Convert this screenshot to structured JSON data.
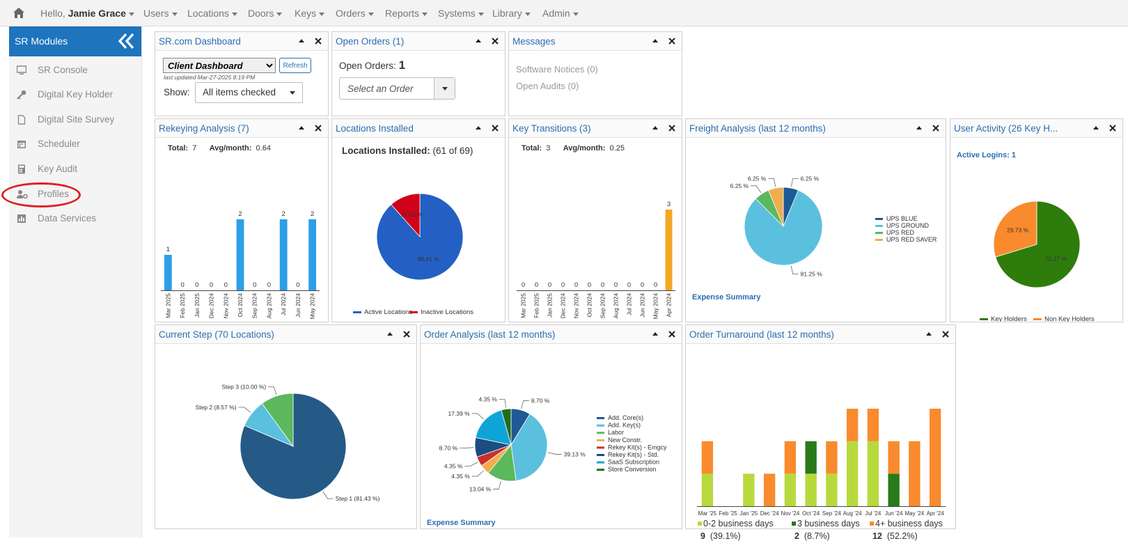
{
  "nav": {
    "greeting": "Hello,",
    "user_name": "Jamie Grace",
    "menus": [
      "Users",
      "Locations",
      "Doors",
      "Keys",
      "Orders",
      "Reports",
      "Systems",
      "Library",
      "Admin"
    ]
  },
  "sidebar": {
    "title": "SR Modules",
    "items": [
      {
        "label": "SR Console",
        "icon": "monitor-icon"
      },
      {
        "label": "Digital Key Holder",
        "icon": "key-icon"
      },
      {
        "label": "Digital Site Survey",
        "icon": "document-icon"
      },
      {
        "label": "Scheduler",
        "icon": "calendar-icon"
      },
      {
        "label": "Key Audit",
        "icon": "calculator-icon"
      },
      {
        "label": "Profiles",
        "icon": "user-gear-icon"
      },
      {
        "label": "Data Services",
        "icon": "chart-icon"
      }
    ]
  },
  "dashboard": {
    "title": "SR.com Dashboard",
    "selected": "Client Dashboard",
    "refresh": "Refresh",
    "last_updated": "last updated Mar-27-2025 8:19 PM",
    "show_label": "Show:",
    "show_value": "All items checked"
  },
  "open_orders": {
    "title": "Open Orders (1)",
    "label": "Open Orders:",
    "count": "1",
    "select_placeholder": "Select an Order"
  },
  "messages": {
    "title": "Messages",
    "software_notices": "Software Notices (0)",
    "open_audits": "Open Audits (0)"
  },
  "rekeying": {
    "title": "Rekeying Analysis (7)",
    "total_label": "Total:",
    "total": "7",
    "avg_label": "Avg/month:",
    "avg": "0.64"
  },
  "locations_installed": {
    "title": "Locations Installed",
    "heading": "Locations Installed:",
    "summary": "(61 of 69)"
  },
  "key_transitions": {
    "title": "Key Transitions (3)",
    "total_label": "Total:",
    "total": "3",
    "avg_label": "Avg/month:",
    "avg": "0.25"
  },
  "freight": {
    "title": "Freight Analysis (last 12 months)",
    "link": "Expense Summary"
  },
  "user_activity": {
    "title": "User Activity (26 Key H...",
    "active_logins": "Active Logins: 1"
  },
  "current_step": {
    "title": "Current Step (70 Locations)"
  },
  "order_analysis": {
    "title": "Order Analysis (last 12 months)",
    "link": "Expense Summary"
  },
  "order_turnaround": {
    "title": "Order Turnaround (last 12 months)",
    "summary": [
      {
        "label": "0-2 business days",
        "count": "9",
        "pct": "(39.1%)",
        "color": "#b8d93e"
      },
      {
        "label": "3 business days",
        "count": "2",
        "pct": "(8.7%)",
        "color": "#2a7a1a"
      },
      {
        "label": "4+ business days",
        "count": "12",
        "pct": "(52.2%)",
        "color": "#f98b2e"
      }
    ]
  },
  "chart_data": [
    {
      "id": "rekeying",
      "type": "bar",
      "categories": [
        "Mar 2025",
        "Feb 2025",
        "Jan 2025",
        "Dec 2024",
        "Nov 2024",
        "Oct 2024",
        "Sep 2024",
        "Aug 2024",
        "Jul 2024",
        "Jun 2024",
        "May 2024"
      ],
      "values": [
        1,
        0,
        0,
        0,
        0,
        2,
        0,
        0,
        2,
        0,
        2
      ],
      "color": "#2d9ee8",
      "ylim": [
        0,
        2
      ]
    },
    {
      "id": "locations",
      "type": "pie",
      "labels": [
        "Active Locations",
        "Inactive Locations"
      ],
      "values": [
        88.41,
        11.59
      ],
      "slice_labels": [
        "88.41 %",
        "11.59 %"
      ],
      "colors": [
        "#2460c4",
        "#d0021b"
      ],
      "legend": "bottom"
    },
    {
      "id": "key_transitions",
      "type": "bar",
      "categories": [
        "Mar 2025",
        "Feb 2025",
        "Jan 2025",
        "Dec 2024",
        "Nov 2024",
        "Oct 2024",
        "Sep 2024",
        "Aug 2024",
        "Jul 2024",
        "Jun 2024",
        "May 2024",
        "Apr 2024"
      ],
      "values": [
        0,
        0,
        0,
        0,
        0,
        0,
        0,
        0,
        0,
        0,
        0,
        3
      ],
      "color": "#f5a623",
      "ylim": [
        0,
        3
      ]
    },
    {
      "id": "freight",
      "type": "pie",
      "labels": [
        "UPS BLUE",
        "UPS GROUND",
        "UPS RED",
        "UPS RED SAVER"
      ],
      "values": [
        6.25,
        81.25,
        6.25,
        6.25
      ],
      "slice_labels": [
        "6.25 %",
        "81.25 %",
        "6.25 %",
        "6.25 %"
      ],
      "colors": [
        "#1f5a96",
        "#5bc0de",
        "#5cb85c",
        "#f0ad4e"
      ],
      "legend": "right"
    },
    {
      "id": "user_activity",
      "type": "pie",
      "labels": [
        "Key Holders",
        "Non Key Holders"
      ],
      "values": [
        70.27,
        29.73
      ],
      "slice_labels": [
        "70.27 %",
        "29.73 %"
      ],
      "colors": [
        "#2e7d0c",
        "#f98b2e"
      ],
      "legend": "bottom"
    },
    {
      "id": "current_step",
      "type": "pie",
      "labels": [
        "Step 1",
        "Step 2",
        "Step 3"
      ],
      "values": [
        81.43,
        8.57,
        10.0
      ],
      "slice_labels": [
        "Step 1 (81.43 %)",
        "Step 2 (8.57 %)",
        "Step 3 (10.00 %)"
      ],
      "colors": [
        "#255a86",
        "#5bc0de",
        "#5cb85c"
      ]
    },
    {
      "id": "order_analysis",
      "type": "pie",
      "labels": [
        "Add. Core(s)",
        "Add. Key(s)",
        "Labor",
        "New Constr.",
        "Rekey Kit(s) - Emgcy",
        "Rekey Kit(s) - Std.",
        "SaaS Subscription",
        "Store Conversion"
      ],
      "values": [
        8.7,
        39.13,
        13.04,
        4.35,
        4.35,
        8.7,
        17.39,
        4.35
      ],
      "slice_labels": [
        "8.70 %",
        "39.13 %",
        "13.04 %",
        "4.35 %",
        "4.35 %",
        "8.70 %",
        "17.39 %",
        "4.35 %"
      ],
      "colors": [
        "#1f5a96",
        "#5bc0de",
        "#5cb85c",
        "#f0ad4e",
        "#c9302c",
        "#1a4d80",
        "#0ea5d6",
        "#1e6e1e"
      ],
      "legend": "right"
    },
    {
      "id": "order_turnaround",
      "type": "bar",
      "stacked": true,
      "categories": [
        "Mar '25",
        "Feb '25",
        "Jan '25",
        "Dec '24",
        "Nov '24",
        "Oct '24",
        "Sep '24",
        "Aug '24",
        "Jul '24",
        "Jun '24",
        "May '24",
        "Apr '24"
      ],
      "series": [
        {
          "name": "0-2 business days",
          "values": [
            1,
            0,
            1,
            0,
            1,
            1,
            1,
            2,
            2,
            0,
            0,
            0
          ],
          "color": "#b8d93e"
        },
        {
          "name": "3 business days",
          "values": [
            0,
            0,
            0,
            0,
            0,
            1,
            0,
            0,
            0,
            1,
            0,
            0
          ],
          "color": "#2a7a1a"
        },
        {
          "name": "4+ business days",
          "values": [
            1,
            0,
            0,
            1,
            1,
            0,
            1,
            1,
            1,
            1,
            2,
            3
          ],
          "color": "#f98b2e"
        }
      ],
      "ylim": [
        0,
        3
      ]
    }
  ]
}
